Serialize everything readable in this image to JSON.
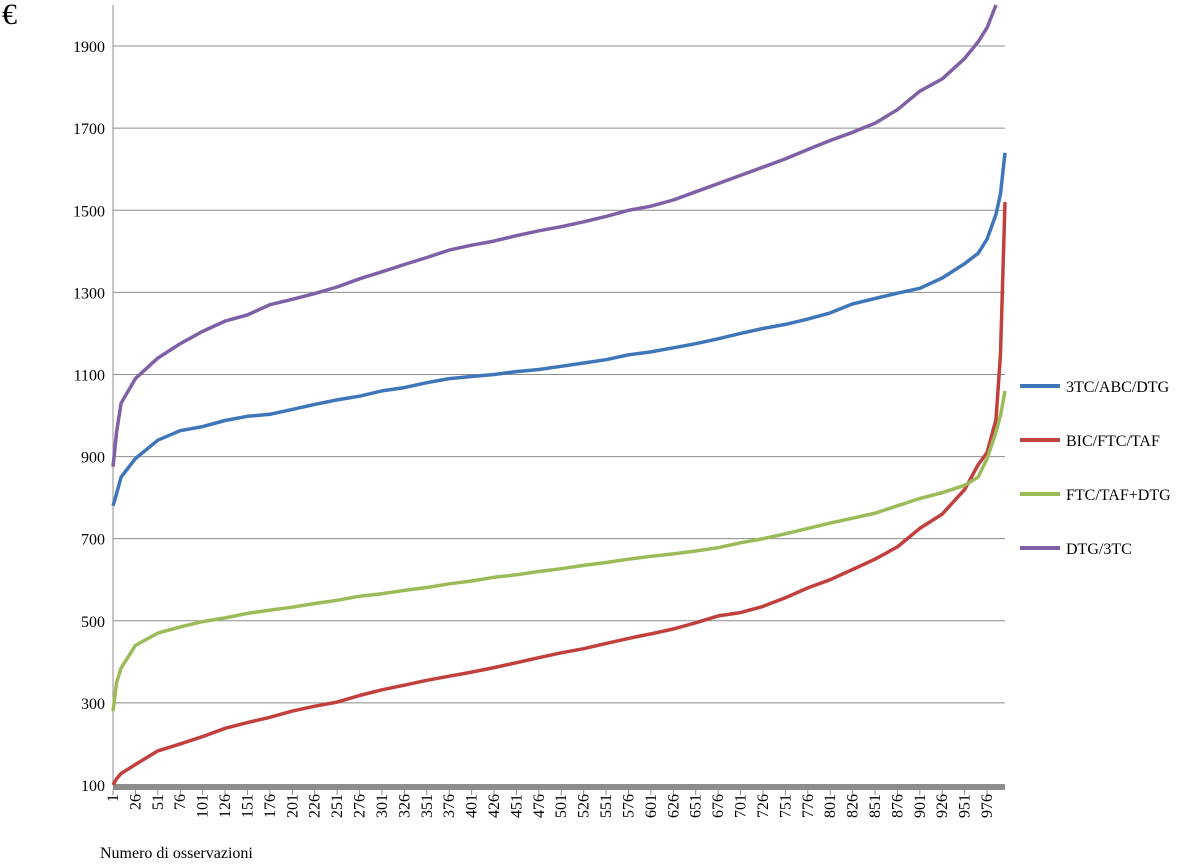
{
  "chart_data": {
    "type": "line",
    "ylabel": "€",
    "xlabel": "Numero di osservazioni",
    "x": [
      1,
      5,
      10,
      26,
      51,
      76,
      101,
      126,
      151,
      176,
      201,
      226,
      251,
      276,
      301,
      326,
      351,
      376,
      401,
      426,
      451,
      476,
      501,
      526,
      551,
      576,
      601,
      626,
      651,
      676,
      701,
      726,
      751,
      776,
      801,
      826,
      851,
      876,
      901,
      926,
      951,
      966,
      976,
      986,
      991,
      996
    ],
    "series": [
      {
        "name": "3TC/ABC/DTG",
        "color": "#3f76b9",
        "values": [
          780,
          810,
          850,
          895,
          940,
          963,
          973,
          988,
          998,
          1003,
          1015,
          1027,
          1038,
          1047,
          1060,
          1068,
          1080,
          1090,
          1095,
          1100,
          1107,
          1112,
          1120,
          1128,
          1136,
          1148,
          1155,
          1165,
          1175,
          1187,
          1200,
          1212,
          1222,
          1235,
          1250,
          1272,
          1285,
          1298,
          1310,
          1335,
          1370,
          1395,
          1430,
          1490,
          1540,
          1640
        ]
      },
      {
        "name": "BIC/FTC/TAF",
        "color": "#c1403d",
        "values": [
          100,
          115,
          128,
          150,
          183,
          200,
          218,
          238,
          252,
          265,
          280,
          292,
          302,
          318,
          332,
          343,
          355,
          365,
          375,
          386,
          398,
          410,
          422,
          432,
          445,
          457,
          468,
          480,
          495,
          512,
          520,
          535,
          556,
          580,
          600,
          625,
          650,
          680,
          725,
          760,
          820,
          880,
          910,
          990,
          1150,
          1520
        ]
      },
      {
        "name": "FTC/TAF+DTG",
        "color": "#9bbb59",
        "values": [
          280,
          350,
          385,
          440,
          470,
          485,
          498,
          507,
          518,
          526,
          533,
          542,
          550,
          560,
          566,
          574,
          581,
          590,
          597,
          606,
          612,
          620,
          627,
          635,
          642,
          650,
          657,
          663,
          670,
          678,
          690,
          700,
          712,
          725,
          738,
          750,
          762,
          780,
          798,
          812,
          830,
          850,
          895,
          960,
          1000,
          1060
        ]
      },
      {
        "name": "DTG/3TC",
        "color": "#7f5fa5",
        "values": [
          875,
          960,
          1030,
          1090,
          1140,
          1175,
          1205,
          1230,
          1245,
          1270,
          1283,
          1297,
          1313,
          1333,
          1350,
          1368,
          1385,
          1403,
          1415,
          1425,
          1438,
          1450,
          1460,
          1472,
          1485,
          1500,
          1510,
          1525,
          1545,
          1565,
          1585,
          1605,
          1625,
          1648,
          1670,
          1690,
          1712,
          1745,
          1790,
          1820,
          1870,
          1910,
          1945,
          2000,
          null,
          null
        ]
      }
    ],
    "xlim": [
      1,
      996
    ],
    "xticks": [
      1,
      26,
      51,
      76,
      101,
      126,
      151,
      176,
      201,
      226,
      251,
      276,
      301,
      326,
      351,
      376,
      401,
      426,
      451,
      476,
      501,
      526,
      551,
      576,
      601,
      626,
      651,
      676,
      701,
      726,
      751,
      776,
      801,
      826,
      851,
      876,
      901,
      926,
      951,
      976
    ],
    "ylim": [
      100,
      2000
    ],
    "yticks": [
      100,
      300,
      500,
      700,
      900,
      1100,
      1300,
      1500,
      1700,
      1900
    ],
    "grid": true,
    "legend": "right"
  }
}
